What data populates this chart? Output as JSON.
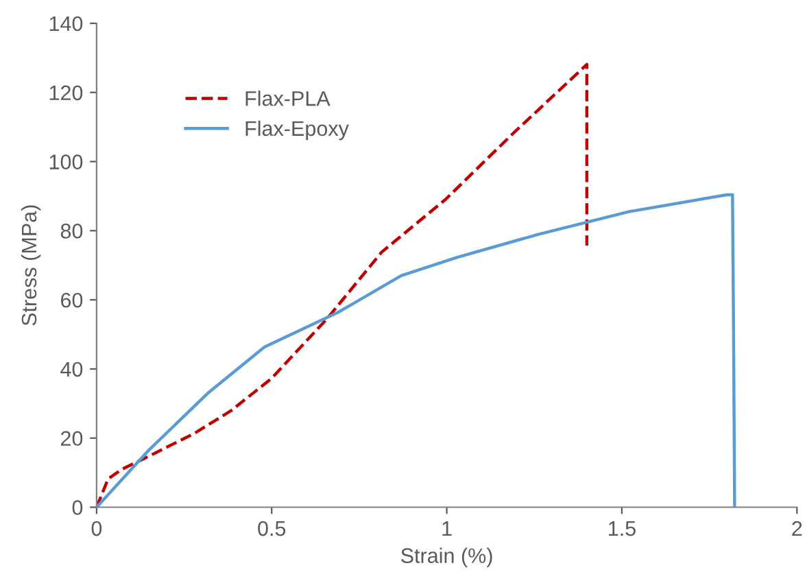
{
  "chart_data": {
    "type": "line",
    "xlabel": "Strain (%)",
    "ylabel": "Stress (MPa)",
    "xlim": [
      0,
      2
    ],
    "ylim": [
      0,
      140
    ],
    "xticks": [
      0,
      0.5,
      1,
      1.5,
      2
    ],
    "yticks": [
      0,
      20,
      40,
      60,
      80,
      100,
      120,
      140
    ],
    "grid": false,
    "legend": "top left",
    "marker": "none",
    "series": [
      {
        "name": "Flax-PLA",
        "color": "#c00000",
        "line_style": "dashed",
        "x": [
          0,
          0.033,
          0.071,
          0.15,
          0.28,
          0.385,
          0.5,
          0.658,
          0.814,
          0.996,
          1.19,
          1.4,
          1.4
        ],
        "values": [
          0,
          8.2,
          10.9,
          14.8,
          21.4,
          28,
          37.3,
          54.5,
          73.8,
          89,
          108.2,
          128.1,
          75.7
        ]
      },
      {
        "name": "Flax-Epoxy",
        "color": "#5b9bd5",
        "line_style": "solid",
        "x": [
          0,
          0.15,
          0.32,
          0.48,
          0.69,
          0.87,
          1.03,
          1.26,
          1.52,
          1.8,
          1.816,
          1.819,
          1.822
        ],
        "values": [
          0,
          16.6,
          33.2,
          46.4,
          56.4,
          67,
          72.3,
          78.9,
          85.5,
          90.4,
          90.4,
          50.6,
          0
        ]
      }
    ]
  }
}
